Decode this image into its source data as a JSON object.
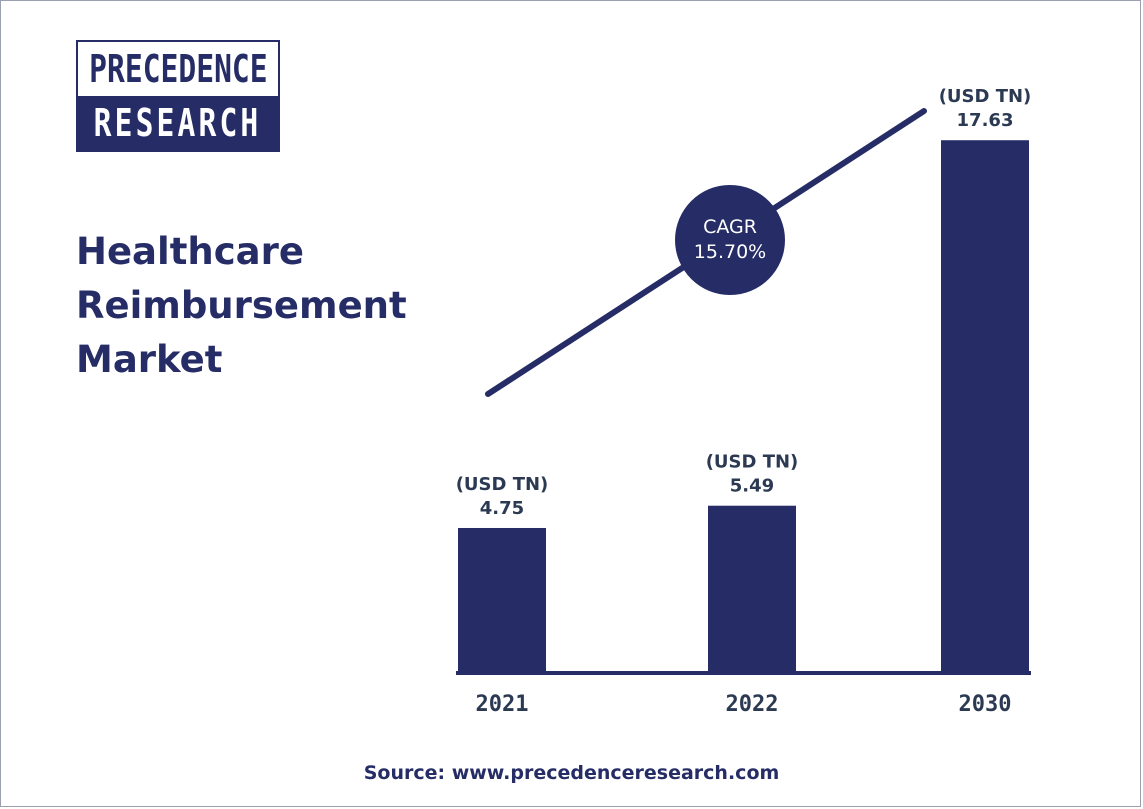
{
  "brand": {
    "line1": "PRECEDENCE",
    "line2": "RESEARCH"
  },
  "title_lines": [
    "Healthcare",
    "Reimbursement",
    "Market"
  ],
  "cagr": {
    "label": "CAGR",
    "value": "15.70%"
  },
  "source": "Source: www.precedenceresearch.com",
  "colors": {
    "bar": "#262d66",
    "text": "#262d66",
    "value_label": "#2b3a52",
    "background": "#ffffff"
  },
  "chart_data": {
    "type": "bar",
    "title": "Healthcare Reimbursement Market",
    "categories": [
      "2021",
      "2022",
      "2030"
    ],
    "values": [
      4.75,
      5.49,
      17.63
    ],
    "value_unit_label": "(USD TN)",
    "value_labels": [
      "4.75",
      "5.49",
      "17.63"
    ],
    "xlabel": "",
    "ylabel": "",
    "ylim": [
      0,
      18.7
    ],
    "grid": false,
    "legend": "none"
  }
}
